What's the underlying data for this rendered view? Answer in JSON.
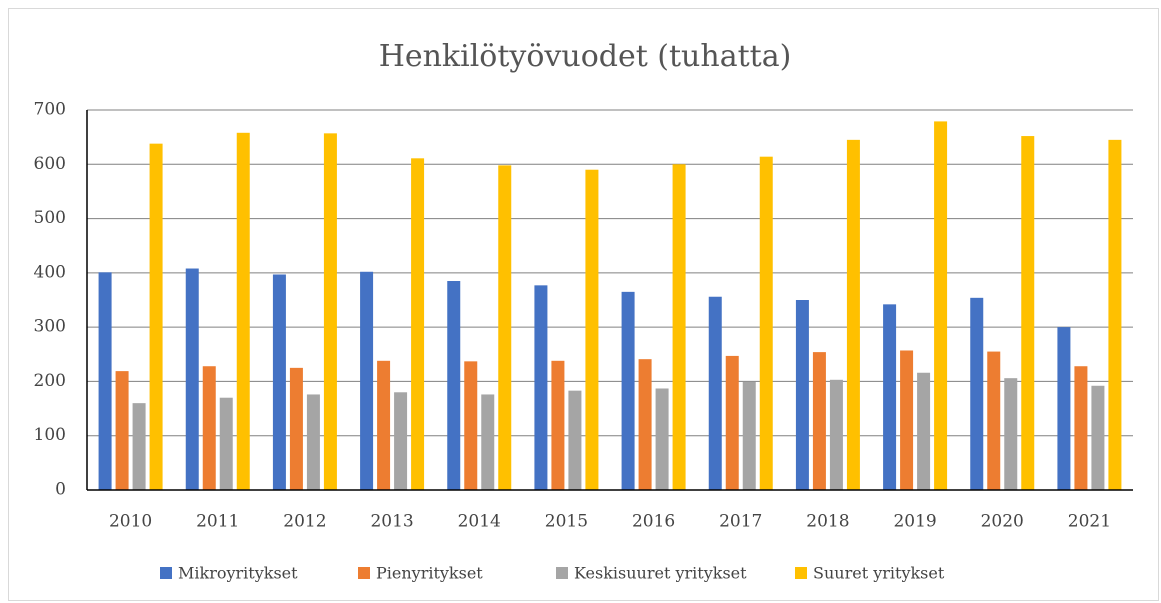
{
  "chart_data": {
    "type": "bar",
    "title": "Henkilötyövuodet (tuhatta)",
    "categories": [
      "2010",
      "2011",
      "2012",
      "2013",
      "2014",
      "2015",
      "2016",
      "2017",
      "2018",
      "2019",
      "2020",
      "2021"
    ],
    "series": [
      {
        "name": "Mikroyritykset",
        "color": "#4472c4",
        "values": [
          401,
          408,
          397,
          402,
          385,
          377,
          365,
          356,
          350,
          342,
          354,
          300
        ]
      },
      {
        "name": "Pienyritykset",
        "color": "#ed7d31",
        "values": [
          219,
          228,
          225,
          238,
          237,
          238,
          241,
          247,
          254,
          257,
          255,
          228
        ]
      },
      {
        "name": "Keskisuuret yritykset",
        "color": "#a5a5a5",
        "values": [
          160,
          170,
          176,
          180,
          176,
          183,
          187,
          199,
          203,
          216,
          206,
          192
        ]
      },
      {
        "name": "Suuret yritykset",
        "color": "#ffc000",
        "values": [
          638,
          658,
          657,
          611,
          598,
          590,
          600,
          614,
          645,
          679,
          652,
          645
        ]
      }
    ],
    "ylim": [
      0,
      700
    ],
    "yticks": [
      0,
      100,
      200,
      300,
      400,
      500,
      600,
      700
    ],
    "grid": true,
    "legend": "bottom"
  }
}
